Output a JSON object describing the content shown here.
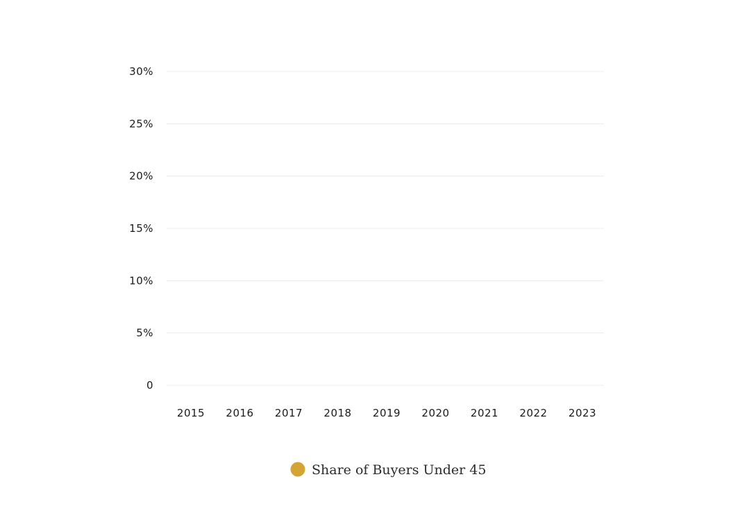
{
  "chart_data": {
    "type": "bar",
    "title": "",
    "xlabel": "",
    "ylabel": "",
    "categories": [
      "2015",
      "2016",
      "2017",
      "2018",
      "2019",
      "2020",
      "2021",
      "2022",
      "2023"
    ],
    "series": [
      {
        "name": "Share of Buyers Under 45",
        "color": "#d4a535",
        "values": [
          null,
          null,
          null,
          null,
          null,
          null,
          null,
          null,
          null
        ]
      }
    ],
    "ylim": [
      0,
      30
    ],
    "y_ticks": [
      {
        "value": 0,
        "label": "0"
      },
      {
        "value": 5,
        "label": "5%"
      },
      {
        "value": 10,
        "label": "10%"
      },
      {
        "value": 15,
        "label": "15%"
      },
      {
        "value": 20,
        "label": "20%"
      },
      {
        "value": 25,
        "label": "25%"
      },
      {
        "value": 30,
        "label": "30%"
      }
    ],
    "grid": true,
    "legend_position": "bottom-center"
  }
}
